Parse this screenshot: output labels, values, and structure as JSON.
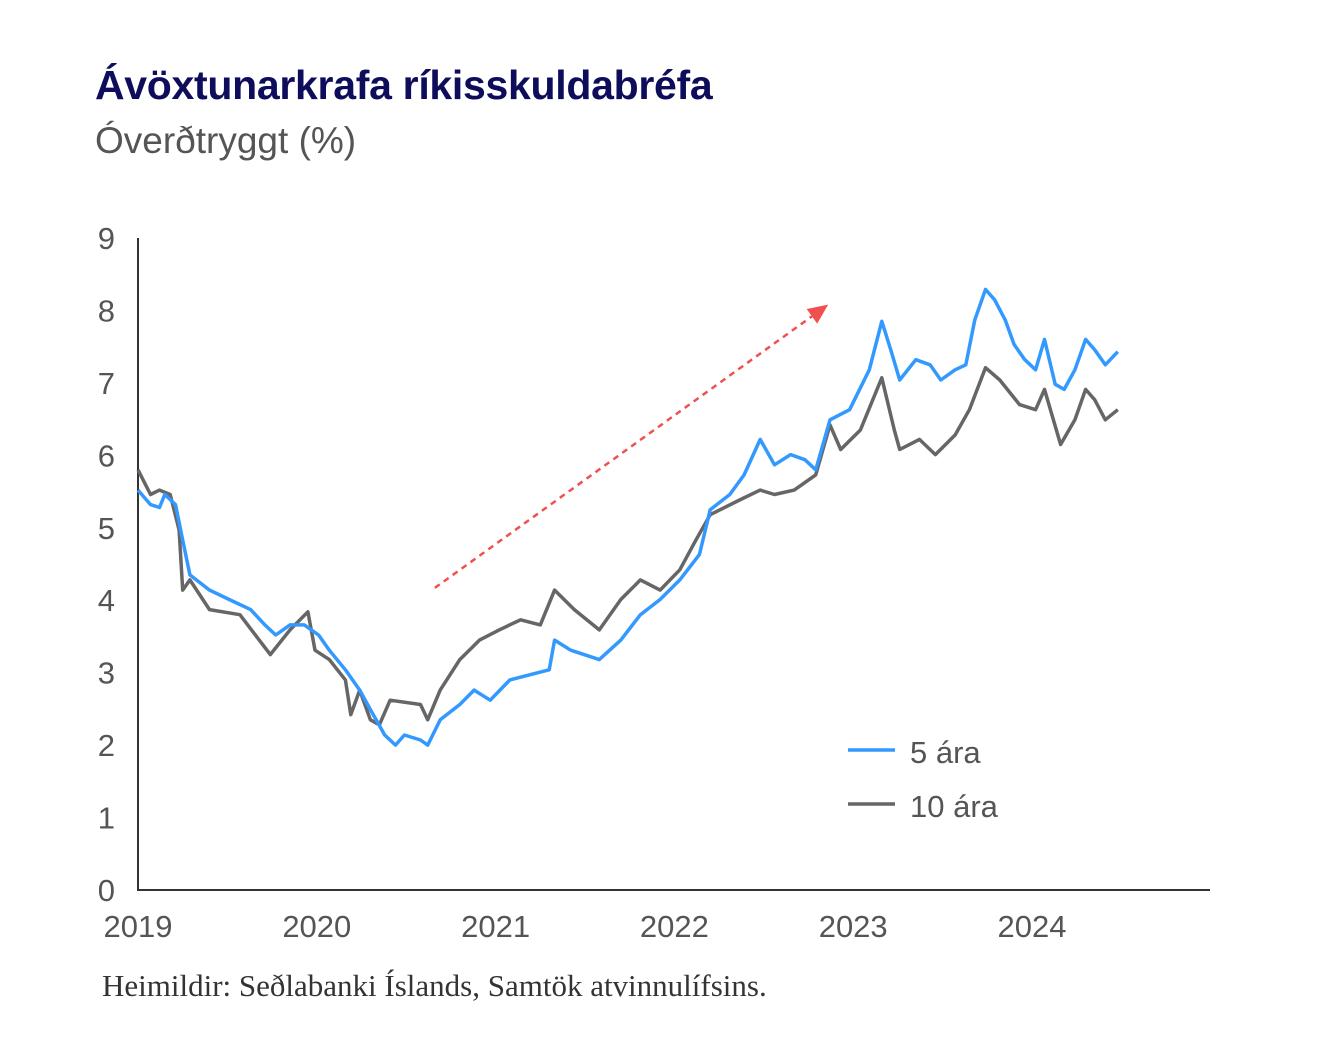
{
  "chart_data": {
    "type": "line",
    "title": "Ávöxtunarkrafa ríkisskuldabréfa",
    "subtitle": "Óverðtryggt (%)",
    "source": "Heimildir: Seðlabanki Íslands, Samtök atvinnulífsins.",
    "xlabel": "",
    "ylabel": "",
    "xlim": [
      2019,
      2025
    ],
    "ylim": [
      0,
      9
    ],
    "grid": false,
    "legend_position": "bottom-right",
    "x_ticks": [
      "2019",
      "2020",
      "2021",
      "2022",
      "2023",
      "2024"
    ],
    "y_ticks": [
      "0",
      "1",
      "2",
      "3",
      "4",
      "5",
      "6",
      "7",
      "8",
      "9"
    ],
    "series": [
      {
        "name": "5 ára",
        "color": "#3399ff",
        "x": [
          2019.0,
          2019.07,
          2019.12,
          2019.15,
          2019.21,
          2019.25,
          2019.29,
          2019.4,
          2019.51,
          2019.63,
          2019.71,
          2019.77,
          2019.85,
          2019.93,
          2020.01,
          2020.07,
          2020.16,
          2020.24,
          2020.3,
          2020.38,
          2020.44,
          2020.49,
          2020.58,
          2020.62,
          2020.69,
          2020.8,
          2020.88,
          2020.97,
          2021.08,
          2021.19,
          2021.3,
          2021.33,
          2021.42,
          2021.58,
          2021.7,
          2021.81,
          2021.92,
          2022.03,
          2022.14,
          2022.2,
          2022.31,
          2022.39,
          2022.48,
          2022.56,
          2022.65,
          2022.73,
          2022.79,
          2022.87,
          2022.98,
          2023.09,
          2023.16,
          2023.21,
          2023.26,
          2023.35,
          2023.43,
          2023.49,
          2023.57,
          2023.63,
          2023.68,
          2023.74,
          2023.79,
          2023.85,
          2023.9,
          2023.96,
          2024.02,
          2024.07,
          2024.13,
          2024.18,
          2024.24,
          2024.3,
          2024.35,
          2024.41,
          2024.48
        ],
        "values": [
          5.52,
          5.32,
          5.28,
          5.46,
          5.32,
          4.83,
          4.35,
          4.14,
          4.01,
          3.87,
          3.66,
          3.52,
          3.66,
          3.66,
          3.52,
          3.31,
          3.04,
          2.76,
          2.49,
          2.14,
          2.0,
          2.14,
          2.07,
          2.0,
          2.35,
          2.56,
          2.76,
          2.62,
          2.9,
          2.97,
          3.04,
          3.45,
          3.31,
          3.18,
          3.45,
          3.8,
          4.01,
          4.28,
          4.63,
          5.25,
          5.46,
          5.73,
          6.22,
          5.87,
          6.01,
          5.94,
          5.8,
          6.49,
          6.63,
          7.18,
          7.85,
          7.46,
          7.04,
          7.32,
          7.25,
          7.04,
          7.18,
          7.25,
          7.87,
          8.29,
          8.15,
          7.87,
          7.53,
          7.32,
          7.18,
          7.6,
          6.98,
          6.91,
          7.18,
          7.6,
          7.46,
          7.25,
          7.43
        ]
      },
      {
        "name": "10 ára",
        "color": "#666666",
        "x": [
          2019.0,
          2019.07,
          2019.12,
          2019.18,
          2019.23,
          2019.25,
          2019.29,
          2019.4,
          2019.57,
          2019.74,
          2019.85,
          2019.95,
          2019.99,
          2020.07,
          2020.16,
          2020.19,
          2020.24,
          2020.3,
          2020.35,
          2020.41,
          2020.58,
          2020.62,
          2020.69,
          2020.8,
          2020.91,
          2021.02,
          2021.14,
          2021.25,
          2021.33,
          2021.44,
          2021.58,
          2021.7,
          2021.81,
          2021.92,
          2022.03,
          2022.12,
          2022.2,
          2022.37,
          2022.48,
          2022.56,
          2022.67,
          2022.79,
          2022.87,
          2022.93,
          2023.04,
          2023.16,
          2023.23,
          2023.26,
          2023.37,
          2023.46,
          2023.57,
          2023.65,
          2023.74,
          2023.82,
          2023.93,
          2024.02,
          2024.07,
          2024.16,
          2024.24,
          2024.3,
          2024.35,
          2024.41,
          2024.48
        ],
        "values": [
          5.8,
          5.46,
          5.52,
          5.46,
          4.97,
          4.14,
          4.28,
          3.87,
          3.8,
          3.25,
          3.59,
          3.84,
          3.31,
          3.18,
          2.9,
          2.42,
          2.76,
          2.35,
          2.28,
          2.62,
          2.56,
          2.35,
          2.76,
          3.18,
          3.45,
          3.59,
          3.73,
          3.66,
          4.14,
          3.87,
          3.59,
          4.01,
          4.28,
          4.14,
          4.42,
          4.83,
          5.18,
          5.39,
          5.52,
          5.46,
          5.52,
          5.73,
          6.42,
          6.08,
          6.35,
          7.07,
          6.35,
          6.08,
          6.22,
          6.01,
          6.28,
          6.63,
          7.21,
          7.04,
          6.7,
          6.63,
          6.91,
          6.15,
          6.49,
          6.91,
          6.77,
          6.49,
          6.63
        ]
      }
    ],
    "annotations": [
      {
        "type": "arrow",
        "style": "dashed",
        "color": "#f05050",
        "from": [
          2020.66,
          4.17
        ],
        "to": [
          2022.86,
          8.08
        ]
      }
    ]
  }
}
